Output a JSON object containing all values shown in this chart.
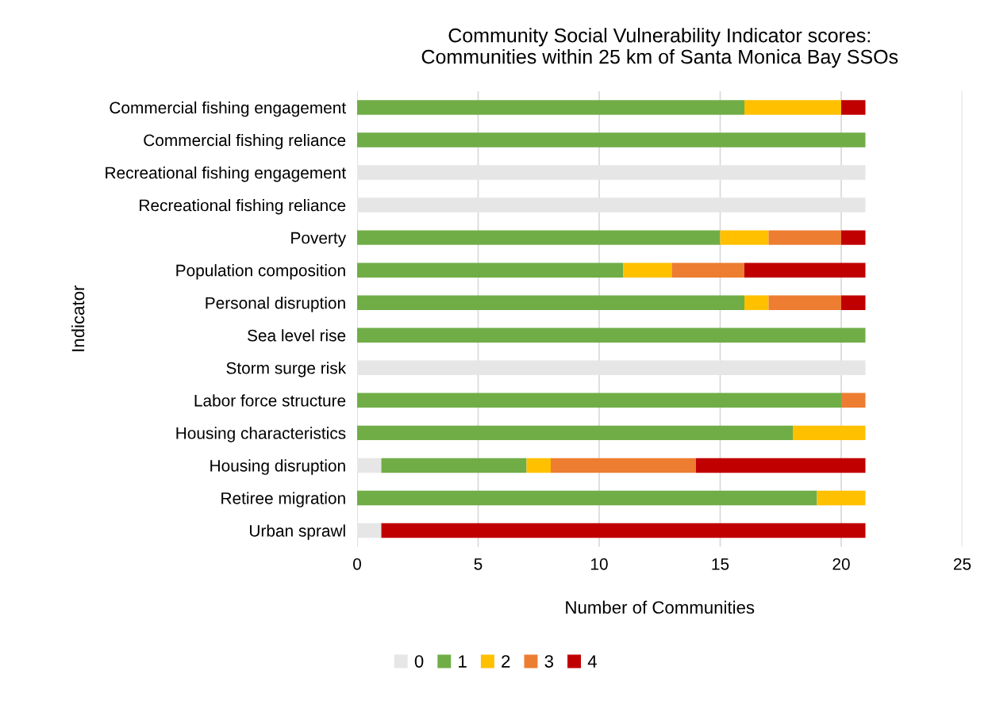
{
  "chart_data": {
    "type": "bar",
    "orientation": "horizontal",
    "stacked": true,
    "title": "Community Social Vulnerability Indicator scores:\nCommunities within 25 km of Santa Monica Bay SSOs",
    "xlabel": "Number of Communities",
    "ylabel": "Indicator",
    "categories": [
      "Commercial fishing engagement",
      "Commercial fishing reliance",
      "Recreational fishing engagement",
      "Recreational fishing reliance",
      "Poverty",
      "Population composition",
      "Personal disruption",
      "Sea level rise",
      "Storm surge risk",
      "Labor force structure",
      "Housing characteristics",
      "Housing disruption",
      "Retiree migration",
      "Urban sprawl"
    ],
    "series": [
      {
        "name": "0",
        "color": "#e7e6e6",
        "values": [
          0,
          0,
          21,
          21,
          0,
          0,
          0,
          0,
          21,
          0,
          0,
          1,
          0,
          1
        ]
      },
      {
        "name": "1",
        "color": "#70ad47",
        "values": [
          16,
          21,
          0,
          0,
          15,
          11,
          16,
          21,
          0,
          20,
          18,
          6,
          19,
          0
        ]
      },
      {
        "name": "2",
        "color": "#ffc000",
        "values": [
          4,
          0,
          0,
          0,
          2,
          2,
          1,
          0,
          0,
          0,
          3,
          1,
          2,
          0
        ]
      },
      {
        "name": "3",
        "color": "#ed7d31",
        "values": [
          0,
          0,
          0,
          0,
          3,
          3,
          3,
          0,
          0,
          1,
          0,
          6,
          0,
          0
        ]
      },
      {
        "name": "4",
        "color": "#c00000",
        "values": [
          1,
          0,
          0,
          0,
          1,
          5,
          1,
          0,
          0,
          0,
          0,
          7,
          0,
          20
        ]
      }
    ],
    "xlim": [
      0,
      25
    ],
    "xticks": [
      0,
      5,
      10,
      15,
      20,
      25
    ],
    "grid": "x",
    "legend": "bottom"
  }
}
